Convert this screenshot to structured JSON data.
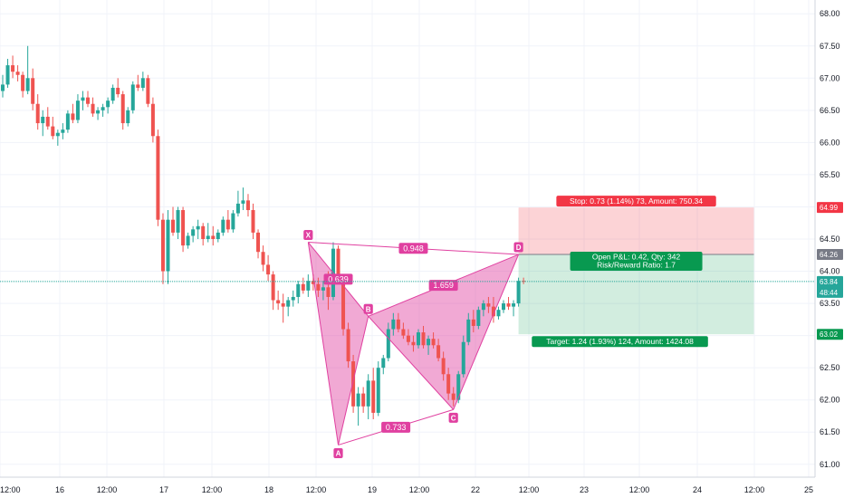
{
  "chart_data": {
    "type": "candlestick",
    "ylim": [
      60.8,
      68.2
    ],
    "y_ticks": [
      "68.00",
      "67.50",
      "67.00",
      "66.50",
      "66.00",
      "65.50",
      "65.00",
      "64.50",
      "64.00",
      "63.50",
      "63.00",
      "62.50",
      "62.00",
      "61.50",
      "61.00"
    ],
    "x_ticks": [
      "12:00",
      "16",
      "12:00",
      "17",
      "12:00",
      "18",
      "12:00",
      "19",
      "12:00",
      "22",
      "12:00",
      "23",
      "12:00",
      "24",
      "12:00",
      "25"
    ],
    "colors": {
      "up": "#26a69a",
      "down": "#ef5350",
      "pattern": "#e040a0",
      "stop": "#f23645",
      "target": "#089950",
      "current": "#26a69a"
    },
    "candles_ohlc": [
      [
        66.8,
        67.05,
        66.7,
        66.9
      ],
      [
        66.9,
        67.3,
        66.85,
        67.2
      ],
      [
        67.2,
        67.35,
        67.0,
        67.1
      ],
      [
        67.1,
        67.2,
        66.95,
        67.05
      ],
      [
        67.05,
        67.1,
        66.7,
        66.8
      ],
      [
        66.8,
        67.5,
        66.75,
        67.0
      ],
      [
        67.0,
        67.15,
        66.5,
        66.6
      ],
      [
        66.6,
        66.75,
        66.2,
        66.3
      ],
      [
        66.3,
        66.5,
        66.1,
        66.4
      ],
      [
        66.4,
        66.55,
        66.2,
        66.25
      ],
      [
        66.25,
        66.4,
        66.05,
        66.1
      ],
      [
        66.1,
        66.2,
        65.95,
        66.15
      ],
      [
        66.15,
        66.3,
        66.05,
        66.2
      ],
      [
        66.2,
        66.5,
        66.15,
        66.45
      ],
      [
        66.45,
        66.6,
        66.3,
        66.35
      ],
      [
        66.35,
        66.75,
        66.3,
        66.65
      ],
      [
        66.65,
        66.8,
        66.5,
        66.7
      ],
      [
        66.7,
        66.8,
        66.55,
        66.6
      ],
      [
        66.6,
        66.7,
        66.4,
        66.45
      ],
      [
        66.45,
        66.55,
        66.35,
        66.5
      ],
      [
        66.5,
        66.6,
        66.4,
        66.55
      ],
      [
        66.55,
        66.7,
        66.45,
        66.65
      ],
      [
        66.65,
        66.9,
        66.6,
        66.85
      ],
      [
        66.85,
        67.0,
        66.7,
        66.75
      ],
      [
        66.75,
        66.8,
        66.2,
        66.3
      ],
      [
        66.3,
        66.55,
        66.25,
        66.5
      ],
      [
        66.5,
        66.95,
        66.45,
        66.9
      ],
      [
        66.9,
        67.05,
        66.8,
        66.85
      ],
      [
        66.85,
        67.1,
        66.8,
        67.0
      ],
      [
        67.0,
        67.05,
        66.55,
        66.6
      ],
      [
        66.6,
        66.7,
        66.0,
        66.1
      ],
      [
        66.1,
        66.2,
        64.7,
        64.8
      ],
      [
        64.8,
        64.9,
        63.8,
        64.0
      ],
      [
        64.0,
        64.95,
        63.8,
        64.8
      ],
      [
        64.8,
        65.0,
        64.55,
        64.6
      ],
      [
        64.6,
        65.0,
        64.5,
        64.95
      ],
      [
        64.95,
        65.0,
        64.3,
        64.4
      ],
      [
        64.4,
        64.6,
        64.35,
        64.55
      ],
      [
        64.55,
        64.7,
        64.45,
        64.65
      ],
      [
        64.65,
        64.8,
        64.5,
        64.7
      ],
      [
        64.7,
        64.75,
        64.4,
        64.5
      ],
      [
        64.5,
        64.75,
        64.45,
        64.55
      ],
      [
        64.55,
        64.7,
        64.4,
        64.5
      ],
      [
        64.5,
        64.65,
        64.45,
        64.6
      ],
      [
        64.6,
        64.85,
        64.55,
        64.8
      ],
      [
        64.8,
        64.95,
        64.6,
        64.65
      ],
      [
        64.65,
        64.95,
        64.6,
        64.9
      ],
      [
        64.9,
        65.25,
        64.85,
        65.05
      ],
      [
        65.05,
        65.3,
        64.95,
        65.1
      ],
      [
        65.1,
        65.2,
        64.85,
        64.95
      ],
      [
        64.95,
        65.05,
        64.5,
        64.6
      ],
      [
        64.6,
        64.65,
        64.2,
        64.3
      ],
      [
        64.3,
        64.4,
        64.0,
        64.1
      ],
      [
        64.1,
        64.25,
        63.85,
        63.95
      ],
      [
        63.95,
        64.0,
        63.4,
        63.55
      ],
      [
        63.55,
        63.7,
        63.4,
        63.5
      ],
      [
        63.5,
        63.65,
        63.2,
        63.45
      ],
      [
        63.45,
        63.6,
        63.3,
        63.55
      ],
      [
        63.55,
        63.7,
        63.45,
        63.6
      ],
      [
        63.6,
        63.85,
        63.5,
        63.8
      ],
      [
        63.8,
        63.9,
        63.65,
        63.7
      ],
      [
        63.7,
        63.95,
        63.6,
        63.85
      ],
      [
        63.85,
        63.95,
        63.7,
        63.8
      ],
      [
        63.8,
        63.9,
        63.6,
        63.7
      ],
      [
        63.7,
        63.85,
        63.55,
        63.75
      ],
      [
        63.75,
        64.0,
        63.4,
        63.6
      ],
      [
        63.6,
        64.45,
        63.55,
        64.35
      ],
      [
        64.35,
        64.4,
        63.8,
        63.9
      ],
      [
        63.9,
        63.95,
        63.0,
        63.1
      ],
      [
        63.1,
        63.2,
        62.5,
        62.6
      ],
      [
        62.6,
        62.7,
        61.8,
        61.9
      ],
      [
        61.9,
        62.2,
        61.6,
        62.1
      ],
      [
        62.1,
        62.2,
        61.8,
        61.9
      ],
      [
        61.9,
        62.4,
        61.7,
        62.3
      ],
      [
        62.3,
        62.5,
        61.7,
        61.8
      ],
      [
        61.8,
        62.6,
        61.75,
        62.5
      ],
      [
        62.5,
        62.7,
        62.4,
        62.65
      ],
      [
        62.65,
        63.2,
        62.6,
        63.1
      ],
      [
        63.1,
        63.35,
        63.0,
        63.25
      ],
      [
        63.25,
        63.35,
        63.05,
        63.1
      ],
      [
        63.1,
        63.2,
        62.95,
        63.0
      ],
      [
        63.0,
        63.1,
        62.85,
        62.9
      ],
      [
        62.9,
        63.0,
        62.75,
        62.85
      ],
      [
        62.85,
        63.1,
        62.8,
        63.05
      ],
      [
        63.05,
        63.15,
        62.8,
        62.85
      ],
      [
        62.85,
        63.0,
        62.7,
        62.95
      ],
      [
        62.95,
        63.05,
        62.8,
        62.85
      ],
      [
        62.85,
        62.95,
        62.6,
        62.65
      ],
      [
        62.65,
        62.75,
        62.3,
        62.4
      ],
      [
        62.4,
        62.5,
        62.0,
        62.1
      ],
      [
        62.1,
        62.2,
        61.9,
        62.0
      ],
      [
        62.0,
        62.45,
        61.95,
        62.4
      ],
      [
        62.4,
        63.0,
        62.35,
        62.9
      ],
      [
        62.9,
        63.35,
        62.85,
        63.25
      ],
      [
        63.25,
        63.4,
        63.05,
        63.15
      ],
      [
        63.15,
        63.45,
        63.1,
        63.4
      ],
      [
        63.4,
        63.55,
        63.3,
        63.5
      ],
      [
        63.5,
        63.6,
        63.35,
        63.45
      ],
      [
        63.45,
        63.6,
        63.2,
        63.3
      ],
      [
        63.3,
        63.45,
        63.25,
        63.4
      ],
      [
        63.4,
        63.55,
        63.35,
        63.5
      ],
      [
        63.5,
        63.6,
        63.4,
        63.45
      ],
      [
        63.45,
        63.55,
        63.3,
        63.5
      ],
      [
        63.5,
        63.9,
        63.45,
        63.85
      ],
      [
        63.85,
        63.9,
        63.8,
        63.84
      ]
    ],
    "price_line": {
      "value": 63.84,
      "label": "63.84",
      "countdown": "48:44"
    },
    "levels": [
      {
        "value": 64.99,
        "label": "64.99",
        "kind": "stop"
      },
      {
        "value": 64.26,
        "label": "64.26",
        "kind": "entry"
      },
      {
        "value": 63.02,
        "label": "63.02",
        "kind": "target"
      }
    ],
    "pattern": {
      "points": [
        {
          "name": "X",
          "x": 61,
          "y": 64.45
        },
        {
          "name": "A",
          "x": 67,
          "y": 61.3
        },
        {
          "name": "B",
          "x": 73,
          "y": 63.3
        },
        {
          "name": "C",
          "x": 90,
          "y": 61.85
        },
        {
          "name": "D",
          "x": 103,
          "y": 64.26
        }
      ],
      "ratios": [
        {
          "label": "0.639",
          "between": [
            "X",
            "B"
          ]
        },
        {
          "label": "0.948",
          "between": [
            "X",
            "D"
          ]
        },
        {
          "label": "1.659",
          "between": [
            "B",
            "D"
          ]
        },
        {
          "label": "0.733",
          "between": [
            "A",
            "C"
          ]
        }
      ]
    },
    "position": {
      "x_start": 103,
      "x_end": 150,
      "stop_label": "Stop: 0.73 (1.14%) 73, Amount: 750.34",
      "pnl_label": "Open P&L: 0.42, Qty: 342",
      "rr_label": "Risk/Reward Ratio: 1.7",
      "target_label": "Target: 1.24 (1.93%) 124, Amount: 1424.08"
    }
  }
}
